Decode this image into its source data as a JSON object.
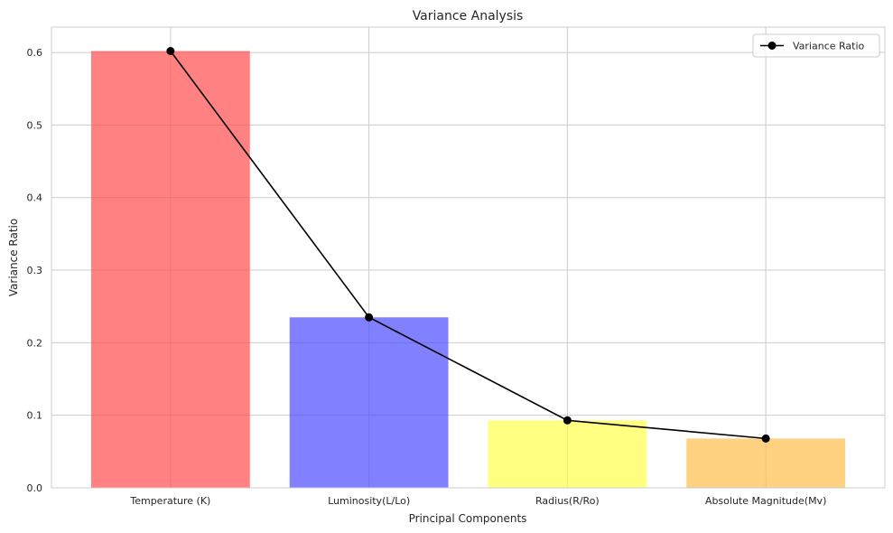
{
  "chart_data": {
    "type": "bar",
    "title": "Variance Analysis",
    "xlabel": "Principal Components",
    "ylabel": "Variance Ratio",
    "categories": [
      "Temperature (K)",
      "Luminosity(L/Lo)",
      "Radius(R/Ro)",
      "Absolute Magnitude(Mv)"
    ],
    "values": [
      0.602,
      0.235,
      0.093,
      0.068
    ],
    "bar_colors": [
      "#ff4c4c",
      "#4c4cff",
      "#ffff4c",
      "#ffbf4c"
    ],
    "line_series": {
      "name": "Variance Ratio",
      "values": [
        0.602,
        0.235,
        0.093,
        0.068
      ],
      "color": "#000000",
      "marker": "circle"
    },
    "ylim": [
      0,
      0.635
    ],
    "yticks": [
      0.0,
      0.1,
      0.2,
      0.3,
      0.4,
      0.5,
      0.6
    ],
    "ytick_labels": [
      "0.0",
      "0.1",
      "0.2",
      "0.3",
      "0.4",
      "0.5",
      "0.6"
    ],
    "grid": true,
    "grid_color": "#cccccc",
    "legend_position": "top-right"
  }
}
